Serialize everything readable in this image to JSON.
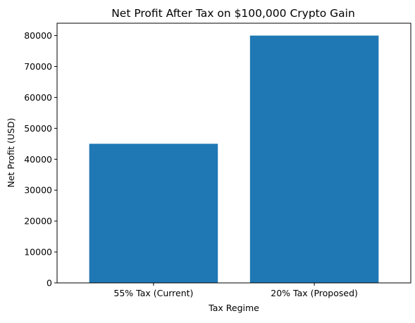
{
  "chart_data": {
    "type": "bar",
    "title": "Net Profit After Tax on $100,000 Crypto Gain",
    "xlabel": "Tax Regime",
    "ylabel": "Net Profit (USD)",
    "categories": [
      "55% Tax (Current)",
      "20% Tax (Proposed)"
    ],
    "values": [
      45000,
      80000
    ],
    "ylim": [
      0,
      84000
    ],
    "yticks": [
      0,
      10000,
      20000,
      30000,
      40000,
      50000,
      60000,
      70000,
      80000
    ],
    "bar_color": "#1f77b4",
    "grid": false,
    "legend": "none"
  }
}
